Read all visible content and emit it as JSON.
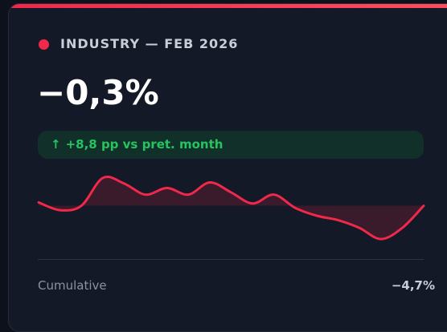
{
  "card": {
    "label": "INDUSTRY — FEB 2026",
    "value": "−0,3%",
    "change": "+8,8 pp vs pret. month",
    "footer_label": "Cumulative",
    "footer_value": "−4,7%"
  },
  "chart_data": {
    "type": "line",
    "values": [
      0.3,
      -0.4,
      0,
      2.5,
      2,
      1,
      1.6,
      1,
      2.1,
      1.2,
      0.2,
      1,
      -0.2,
      -0.9,
      -1.3,
      -2,
      -3,
      -2,
      0
    ],
    "color": "#f0284a",
    "ylim": [
      -3.5,
      3
    ]
  }
}
